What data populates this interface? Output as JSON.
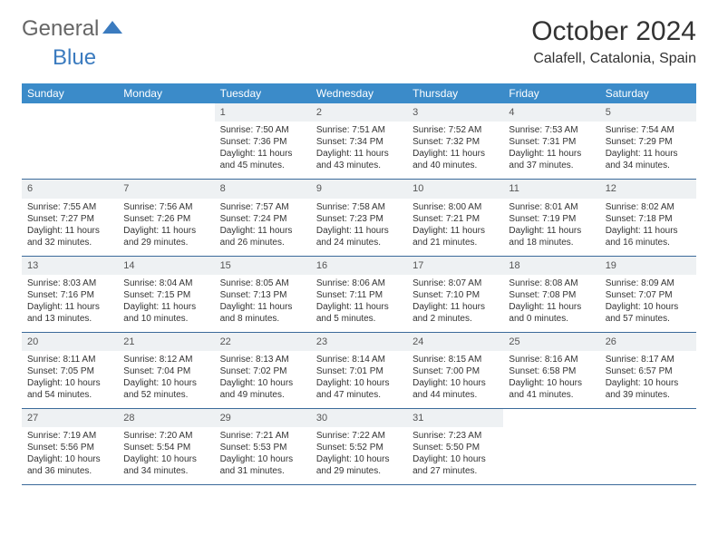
{
  "logo": {
    "text1": "General",
    "text2": "Blue"
  },
  "title": "October 2024",
  "location": "Calafell, Catalonia, Spain",
  "colors": {
    "header_bg": "#3b8bc9",
    "header_fg": "#ffffff",
    "rule": "#3b6a9a",
    "daynum_bg": "#eef1f3",
    "logo_accent": "#3b7bbf"
  },
  "weekdays": [
    "Sunday",
    "Monday",
    "Tuesday",
    "Wednesday",
    "Thursday",
    "Friday",
    "Saturday"
  ],
  "leading_blanks": 2,
  "days": [
    {
      "n": 1,
      "sunrise": "7:50 AM",
      "sunset": "7:36 PM",
      "daylight": "11 hours and 45 minutes."
    },
    {
      "n": 2,
      "sunrise": "7:51 AM",
      "sunset": "7:34 PM",
      "daylight": "11 hours and 43 minutes."
    },
    {
      "n": 3,
      "sunrise": "7:52 AM",
      "sunset": "7:32 PM",
      "daylight": "11 hours and 40 minutes."
    },
    {
      "n": 4,
      "sunrise": "7:53 AM",
      "sunset": "7:31 PM",
      "daylight": "11 hours and 37 minutes."
    },
    {
      "n": 5,
      "sunrise": "7:54 AM",
      "sunset": "7:29 PM",
      "daylight": "11 hours and 34 minutes."
    },
    {
      "n": 6,
      "sunrise": "7:55 AM",
      "sunset": "7:27 PM",
      "daylight": "11 hours and 32 minutes."
    },
    {
      "n": 7,
      "sunrise": "7:56 AM",
      "sunset": "7:26 PM",
      "daylight": "11 hours and 29 minutes."
    },
    {
      "n": 8,
      "sunrise": "7:57 AM",
      "sunset": "7:24 PM",
      "daylight": "11 hours and 26 minutes."
    },
    {
      "n": 9,
      "sunrise": "7:58 AM",
      "sunset": "7:23 PM",
      "daylight": "11 hours and 24 minutes."
    },
    {
      "n": 10,
      "sunrise": "8:00 AM",
      "sunset": "7:21 PM",
      "daylight": "11 hours and 21 minutes."
    },
    {
      "n": 11,
      "sunrise": "8:01 AM",
      "sunset": "7:19 PM",
      "daylight": "11 hours and 18 minutes."
    },
    {
      "n": 12,
      "sunrise": "8:02 AM",
      "sunset": "7:18 PM",
      "daylight": "11 hours and 16 minutes."
    },
    {
      "n": 13,
      "sunrise": "8:03 AM",
      "sunset": "7:16 PM",
      "daylight": "11 hours and 13 minutes."
    },
    {
      "n": 14,
      "sunrise": "8:04 AM",
      "sunset": "7:15 PM",
      "daylight": "11 hours and 10 minutes."
    },
    {
      "n": 15,
      "sunrise": "8:05 AM",
      "sunset": "7:13 PM",
      "daylight": "11 hours and 8 minutes."
    },
    {
      "n": 16,
      "sunrise": "8:06 AM",
      "sunset": "7:11 PM",
      "daylight": "11 hours and 5 minutes."
    },
    {
      "n": 17,
      "sunrise": "8:07 AM",
      "sunset": "7:10 PM",
      "daylight": "11 hours and 2 minutes."
    },
    {
      "n": 18,
      "sunrise": "8:08 AM",
      "sunset": "7:08 PM",
      "daylight": "11 hours and 0 minutes."
    },
    {
      "n": 19,
      "sunrise": "8:09 AM",
      "sunset": "7:07 PM",
      "daylight": "10 hours and 57 minutes."
    },
    {
      "n": 20,
      "sunrise": "8:11 AM",
      "sunset": "7:05 PM",
      "daylight": "10 hours and 54 minutes."
    },
    {
      "n": 21,
      "sunrise": "8:12 AM",
      "sunset": "7:04 PM",
      "daylight": "10 hours and 52 minutes."
    },
    {
      "n": 22,
      "sunrise": "8:13 AM",
      "sunset": "7:02 PM",
      "daylight": "10 hours and 49 minutes."
    },
    {
      "n": 23,
      "sunrise": "8:14 AM",
      "sunset": "7:01 PM",
      "daylight": "10 hours and 47 minutes."
    },
    {
      "n": 24,
      "sunrise": "8:15 AM",
      "sunset": "7:00 PM",
      "daylight": "10 hours and 44 minutes."
    },
    {
      "n": 25,
      "sunrise": "8:16 AM",
      "sunset": "6:58 PM",
      "daylight": "10 hours and 41 minutes."
    },
    {
      "n": 26,
      "sunrise": "8:17 AM",
      "sunset": "6:57 PM",
      "daylight": "10 hours and 39 minutes."
    },
    {
      "n": 27,
      "sunrise": "7:19 AM",
      "sunset": "5:56 PM",
      "daylight": "10 hours and 36 minutes."
    },
    {
      "n": 28,
      "sunrise": "7:20 AM",
      "sunset": "5:54 PM",
      "daylight": "10 hours and 34 minutes."
    },
    {
      "n": 29,
      "sunrise": "7:21 AM",
      "sunset": "5:53 PM",
      "daylight": "10 hours and 31 minutes."
    },
    {
      "n": 30,
      "sunrise": "7:22 AM",
      "sunset": "5:52 PM",
      "daylight": "10 hours and 29 minutes."
    },
    {
      "n": 31,
      "sunrise": "7:23 AM",
      "sunset": "5:50 PM",
      "daylight": "10 hours and 27 minutes."
    }
  ],
  "labels": {
    "sunrise": "Sunrise:",
    "sunset": "Sunset:",
    "daylight": "Daylight:"
  }
}
